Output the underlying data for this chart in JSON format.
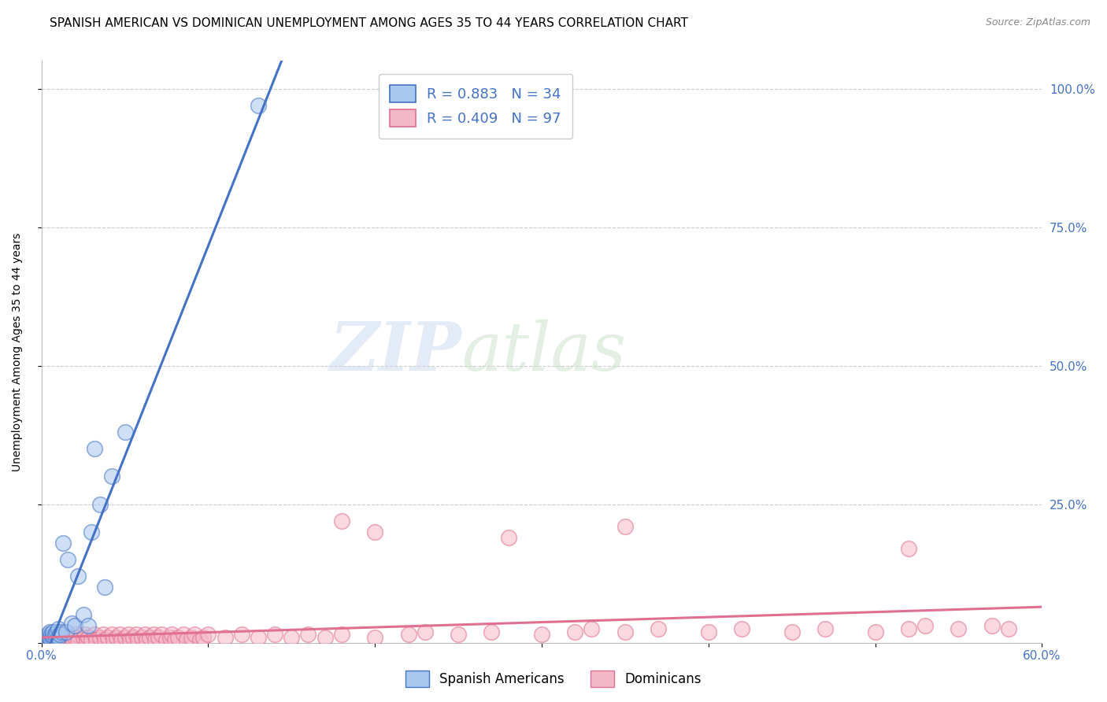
{
  "title": "SPANISH AMERICAN VS DOMINICAN UNEMPLOYMENT AMONG AGES 35 TO 44 YEARS CORRELATION CHART",
  "source": "Source: ZipAtlas.com",
  "ylabel": "Unemployment Among Ages 35 to 44 years",
  "xlim": [
    0.0,
    0.6
  ],
  "ylim": [
    0.0,
    1.05
  ],
  "xticks": [
    0.0,
    0.1,
    0.2,
    0.3,
    0.4,
    0.5,
    0.6
  ],
  "xticklabels": [
    "0.0%",
    "",
    "",
    "",
    "",
    "",
    "60.0%"
  ],
  "yticks_left": [
    0.0,
    0.25,
    0.5,
    0.75,
    1.0
  ],
  "yticklabels_left": [
    "",
    "",
    "",
    "",
    ""
  ],
  "yticks_right": [
    0.0,
    0.25,
    0.5,
    0.75,
    1.0
  ],
  "yticklabels_right": [
    "",
    "25.0%",
    "50.0%",
    "75.0%",
    "100.0%"
  ],
  "legend_r_blue": "R = 0.883",
  "legend_n_blue": "N = 34",
  "legend_r_pink": "R = 0.409",
  "legend_n_pink": "N = 97",
  "blue_color": "#A8C8F0",
  "pink_color": "#F5B8C8",
  "blue_line_color": "#4472C4",
  "pink_line_color": "#E07090",
  "watermark_zip": "ZIP",
  "watermark_atlas": "atlas",
  "title_fontsize": 11,
  "axis_label_fontsize": 10,
  "tick_fontsize": 11,
  "background_color": "#ffffff",
  "grid_color": "#cccccc",
  "blue_scatter_x": [
    0.002,
    0.003,
    0.004,
    0.004,
    0.005,
    0.005,
    0.005,
    0.006,
    0.006,
    0.007,
    0.007,
    0.007,
    0.008,
    0.008,
    0.009,
    0.01,
    0.01,
    0.011,
    0.012,
    0.013,
    0.015,
    0.016,
    0.018,
    0.02,
    0.022,
    0.025,
    0.028,
    0.03,
    0.032,
    0.035,
    0.038,
    0.042,
    0.05,
    0.13
  ],
  "blue_scatter_y": [
    0.01,
    0.005,
    0.01,
    0.015,
    0.005,
    0.01,
    0.02,
    0.005,
    0.015,
    0.008,
    0.012,
    0.02,
    0.01,
    0.015,
    0.02,
    0.01,
    0.025,
    0.015,
    0.02,
    0.18,
    0.02,
    0.15,
    0.035,
    0.03,
    0.12,
    0.05,
    0.03,
    0.2,
    0.35,
    0.25,
    0.1,
    0.3,
    0.38,
    0.97
  ],
  "pink_scatter_x": [
    0.002,
    0.003,
    0.005,
    0.005,
    0.006,
    0.007,
    0.008,
    0.009,
    0.01,
    0.01,
    0.011,
    0.012,
    0.013,
    0.014,
    0.015,
    0.016,
    0.017,
    0.018,
    0.019,
    0.02,
    0.021,
    0.022,
    0.025,
    0.026,
    0.027,
    0.028,
    0.03,
    0.032,
    0.033,
    0.035,
    0.037,
    0.038,
    0.04,
    0.042,
    0.043,
    0.045,
    0.047,
    0.048,
    0.05,
    0.052,
    0.053,
    0.055,
    0.057,
    0.058,
    0.06,
    0.062,
    0.063,
    0.065,
    0.067,
    0.068,
    0.07,
    0.072,
    0.075,
    0.077,
    0.078,
    0.08,
    0.082,
    0.085,
    0.087,
    0.09,
    0.092,
    0.095,
    0.097,
    0.1,
    0.11,
    0.12,
    0.13,
    0.14,
    0.15,
    0.16,
    0.17,
    0.18,
    0.2,
    0.22,
    0.23,
    0.25,
    0.27,
    0.3,
    0.32,
    0.33,
    0.35,
    0.37,
    0.4,
    0.42,
    0.45,
    0.47,
    0.5,
    0.52,
    0.53,
    0.55,
    0.57,
    0.58,
    0.18,
    0.2,
    0.28,
    0.35,
    0.52
  ],
  "pink_scatter_y": [
    0.005,
    0.01,
    0.005,
    0.015,
    0.005,
    0.01,
    0.005,
    0.01,
    0.005,
    0.015,
    0.005,
    0.01,
    0.005,
    0.015,
    0.005,
    0.01,
    0.005,
    0.01,
    0.005,
    0.01,
    0.015,
    0.005,
    0.01,
    0.015,
    0.005,
    0.01,
    0.005,
    0.015,
    0.005,
    0.01,
    0.015,
    0.005,
    0.01,
    0.015,
    0.005,
    0.01,
    0.015,
    0.005,
    0.01,
    0.015,
    0.005,
    0.01,
    0.015,
    0.005,
    0.01,
    0.015,
    0.005,
    0.01,
    0.015,
    0.005,
    0.01,
    0.015,
    0.005,
    0.01,
    0.015,
    0.005,
    0.01,
    0.015,
    0.005,
    0.01,
    0.015,
    0.005,
    0.01,
    0.015,
    0.01,
    0.015,
    0.01,
    0.015,
    0.01,
    0.015,
    0.01,
    0.015,
    0.01,
    0.015,
    0.02,
    0.015,
    0.02,
    0.015,
    0.02,
    0.025,
    0.02,
    0.025,
    0.02,
    0.025,
    0.02,
    0.025,
    0.02,
    0.025,
    0.03,
    0.025,
    0.03,
    0.025,
    0.22,
    0.2,
    0.19,
    0.21,
    0.17
  ]
}
